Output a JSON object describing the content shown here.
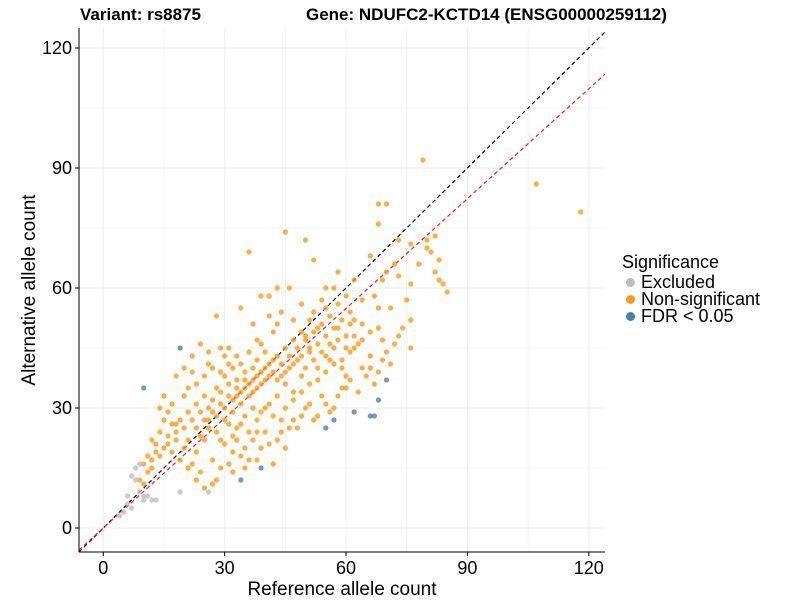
{
  "title": {
    "variant": "Variant: rs8875",
    "gene": "Gene: NDUFC2-KCTD14 (ENSG00000259112)"
  },
  "colors": {
    "Excluded": "#bdbdbd",
    "Non-significant": "#ff9913",
    "FDR < 0.05": "#4a7fb5",
    "identity_line": "#000000",
    "fit_line": "#ff1a1a",
    "grid": "#ececec"
  },
  "chart_data": {
    "type": "scatter",
    "xlabel": "Reference allele count",
    "ylabel": "Alternative allele count",
    "xlim": [
      -6,
      124
    ],
    "ylim": [
      -6,
      125
    ],
    "xticks": [
      0,
      30,
      60,
      90,
      120
    ],
    "yticks": [
      0,
      30,
      60,
      90,
      120
    ],
    "grid": true,
    "legend": {
      "title": "Significance",
      "position": "right",
      "entries": [
        "Excluded",
        "Non-significant",
        "FDR < 0.05"
      ]
    },
    "lines": [
      {
        "name": "identity",
        "style": "dashed",
        "slope": 1.0,
        "intercept": 0
      },
      {
        "name": "fit",
        "style": "dashed",
        "slope": 0.915,
        "intercept": 0
      }
    ],
    "series": [
      {
        "name": "Excluded",
        "points": [
          [
            4,
            3
          ],
          [
            5,
            4
          ],
          [
            6,
            6
          ],
          [
            6,
            8
          ],
          [
            7,
            5
          ],
          [
            7,
            13
          ],
          [
            8,
            12
          ],
          [
            8,
            15
          ],
          [
            9,
            9
          ],
          [
            9,
            16
          ],
          [
            10,
            7
          ],
          [
            10,
            8
          ],
          [
            11,
            8
          ],
          [
            12,
            7
          ],
          [
            13,
            7
          ],
          [
            19,
            9
          ],
          [
            26,
            9
          ]
        ]
      },
      {
        "name": "FDR < 0.05",
        "points": [
          [
            10,
            35
          ],
          [
            19,
            45
          ],
          [
            34,
            12
          ],
          [
            39,
            15
          ],
          [
            55,
            25
          ],
          [
            57,
            27
          ],
          [
            62,
            29
          ],
          [
            66,
            28
          ],
          [
            67,
            28
          ],
          [
            68,
            32
          ],
          [
            70,
            37
          ]
        ]
      },
      {
        "name": "Non-significant",
        "points": [
          [
            79,
            92
          ],
          [
            107,
            86
          ],
          [
            118,
            79
          ],
          [
            73,
            72
          ],
          [
            80,
            72
          ],
          [
            76,
            71
          ],
          [
            83,
            67
          ],
          [
            70,
            81
          ],
          [
            68,
            81
          ],
          [
            68,
            76
          ],
          [
            66,
            68
          ],
          [
            82,
            64
          ],
          [
            69,
            62
          ],
          [
            84,
            61
          ],
          [
            83,
            62
          ],
          [
            85,
            59
          ],
          [
            76,
            52
          ],
          [
            76,
            45
          ],
          [
            75,
            57
          ],
          [
            73,
            48
          ],
          [
            71,
            55
          ],
          [
            64,
            47
          ],
          [
            62,
            45
          ],
          [
            66,
            43
          ],
          [
            69,
            47
          ],
          [
            56,
            42
          ],
          [
            60,
            38
          ],
          [
            61,
            51
          ],
          [
            58,
            56
          ],
          [
            55,
            60
          ],
          [
            52,
            67
          ],
          [
            50,
            72
          ],
          [
            51,
            52
          ],
          [
            53,
            50
          ],
          [
            50,
            48
          ],
          [
            45,
            74
          ],
          [
            43,
            60
          ],
          [
            41,
            58
          ],
          [
            39,
            58
          ],
          [
            38,
            47
          ],
          [
            37,
            51
          ],
          [
            36,
            69
          ],
          [
            34,
            55
          ],
          [
            33,
            43
          ],
          [
            31,
            45
          ],
          [
            30,
            43
          ],
          [
            28,
            53
          ],
          [
            29,
            45
          ],
          [
            26,
            44
          ],
          [
            26,
            41
          ],
          [
            24,
            46
          ],
          [
            22,
            43
          ],
          [
            22,
            39
          ],
          [
            21,
            35
          ],
          [
            20,
            33
          ],
          [
            20,
            40
          ],
          [
            18,
            38
          ],
          [
            17,
            31
          ],
          [
            16,
            29
          ],
          [
            15,
            27
          ],
          [
            15,
            33
          ],
          [
            14,
            24
          ],
          [
            14,
            30
          ],
          [
            13,
            21
          ],
          [
            12,
            17
          ],
          [
            12,
            22
          ],
          [
            11,
            14
          ],
          [
            11,
            18
          ],
          [
            10,
            11
          ],
          [
            10,
            16
          ],
          [
            9,
            12
          ],
          [
            18,
            26
          ],
          [
            18,
            22
          ],
          [
            17,
            19
          ],
          [
            16,
            21
          ],
          [
            19,
            17
          ],
          [
            21,
            15
          ],
          [
            20,
            20
          ],
          [
            22,
            16
          ],
          [
            23,
            12
          ],
          [
            23,
            19
          ],
          [
            24,
            14
          ],
          [
            25,
            22
          ],
          [
            25,
            10
          ],
          [
            27,
            11
          ],
          [
            27,
            17
          ],
          [
            28,
            12
          ],
          [
            29,
            22
          ],
          [
            29,
            15
          ],
          [
            31,
            16
          ],
          [
            32,
            14
          ],
          [
            32,
            19
          ],
          [
            33,
            22
          ],
          [
            34,
            18
          ],
          [
            35,
            15
          ],
          [
            35,
            20
          ],
          [
            36,
            17
          ],
          [
            37,
            22
          ],
          [
            38,
            24
          ],
          [
            38,
            17
          ],
          [
            39,
            20
          ],
          [
            40,
            24
          ],
          [
            41,
            21
          ],
          [
            42,
            16
          ],
          [
            43,
            22
          ],
          [
            44,
            24
          ],
          [
            45,
            20
          ],
          [
            46,
            25
          ],
          [
            47,
            27
          ],
          [
            48,
            25
          ],
          [
            49,
            28
          ],
          [
            50,
            30
          ],
          [
            51,
            31
          ],
          [
            52,
            27
          ],
          [
            53,
            28
          ],
          [
            54,
            33
          ],
          [
            55,
            31
          ],
          [
            56,
            29
          ],
          [
            57,
            30
          ],
          [
            58,
            33
          ],
          [
            59,
            35
          ],
          [
            60,
            35
          ],
          [
            61,
            37
          ],
          [
            63,
            34
          ],
          [
            64,
            40
          ],
          [
            65,
            38
          ],
          [
            66,
            40
          ],
          [
            67,
            36
          ],
          [
            68,
            39
          ],
          [
            69,
            42
          ],
          [
            70,
            44
          ],
          [
            71,
            41
          ],
          [
            72,
            46
          ],
          [
            74,
            50
          ],
          [
            76,
            61
          ],
          [
            78,
            66
          ],
          [
            80,
            70
          ],
          [
            81,
            69
          ],
          [
            82,
            73
          ],
          [
            72,
            66
          ],
          [
            70,
            64
          ],
          [
            73,
            63
          ],
          [
            67,
            58
          ],
          [
            68,
            55
          ],
          [
            64,
            57
          ],
          [
            62,
            62
          ],
          [
            60,
            58
          ],
          [
            58,
            64
          ],
          [
            57,
            60
          ],
          [
            55,
            55
          ],
          [
            54,
            57
          ],
          [
            52,
            54
          ],
          [
            49,
            56
          ],
          [
            47,
            52
          ],
          [
            46,
            60
          ],
          [
            44,
            54
          ],
          [
            43,
            51
          ],
          [
            42,
            49
          ],
          [
            41,
            53
          ],
          [
            40,
            44
          ],
          [
            39,
            46
          ],
          [
            38,
            42
          ],
          [
            37,
            40
          ],
          [
            36,
            44
          ],
          [
            35,
            39
          ],
          [
            34,
            41
          ],
          [
            33,
            37
          ],
          [
            32,
            40
          ],
          [
            31,
            36
          ],
          [
            30,
            38
          ],
          [
            29,
            34
          ],
          [
            28,
            35
          ],
          [
            27,
            32
          ],
          [
            26,
            30
          ],
          [
            25,
            33
          ],
          [
            24,
            29
          ],
          [
            23,
            31
          ],
          [
            22,
            27
          ],
          [
            21,
            29
          ],
          [
            20,
            25
          ],
          [
            19,
            27
          ],
          [
            18,
            24
          ],
          [
            17,
            26
          ],
          [
            16,
            23
          ],
          [
            15,
            20
          ],
          [
            14,
            18
          ],
          [
            13,
            19
          ],
          [
            12,
            15
          ],
          [
            30,
            27
          ],
          [
            32,
            29
          ],
          [
            34,
            31
          ],
          [
            36,
            33
          ],
          [
            38,
            35
          ],
          [
            40,
            37
          ],
          [
            42,
            39
          ],
          [
            44,
            41
          ],
          [
            46,
            43
          ],
          [
            48,
            45
          ],
          [
            50,
            47
          ],
          [
            52,
            49
          ],
          [
            54,
            51
          ],
          [
            56,
            53
          ],
          [
            58,
            50
          ],
          [
            60,
            48
          ],
          [
            62,
            52
          ],
          [
            64,
            51
          ],
          [
            66,
            49
          ],
          [
            68,
            50
          ],
          [
            45,
            36
          ],
          [
            47,
            34
          ],
          [
            49,
            38
          ],
          [
            51,
            36
          ],
          [
            53,
            40
          ],
          [
            55,
            43
          ],
          [
            57,
            45
          ],
          [
            59,
            42
          ],
          [
            61,
            44
          ],
          [
            63,
            46
          ],
          [
            31,
            26
          ],
          [
            33,
            25
          ],
          [
            35,
            28
          ],
          [
            37,
            30
          ],
          [
            39,
            29
          ],
          [
            41,
            31
          ],
          [
            43,
            33
          ],
          [
            45,
            30
          ],
          [
            47,
            32
          ],
          [
            49,
            34
          ],
          [
            26,
            25
          ],
          [
            28,
            24
          ],
          [
            30,
            21
          ],
          [
            32,
            23
          ],
          [
            34,
            26
          ],
          [
            36,
            24
          ],
          [
            38,
            27
          ],
          [
            40,
            30
          ],
          [
            42,
            28
          ],
          [
            44,
            27
          ],
          [
            23,
            36
          ],
          [
            25,
            38
          ],
          [
            27,
            40
          ],
          [
            29,
            39
          ],
          [
            31,
            41
          ],
          [
            33,
            33
          ],
          [
            35,
            35
          ],
          [
            37,
            37
          ],
          [
            39,
            39
          ],
          [
            41,
            41
          ],
          [
            43,
            43
          ],
          [
            45,
            45
          ],
          [
            47,
            47
          ],
          [
            49,
            49
          ],
          [
            51,
            44
          ],
          [
            53,
            46
          ],
          [
            55,
            48
          ],
          [
            57,
            50
          ],
          [
            59,
            52
          ],
          [
            61,
            54
          ],
          [
            24,
            23
          ],
          [
            26,
            27
          ],
          [
            28,
            28
          ],
          [
            30,
            30
          ],
          [
            32,
            32
          ],
          [
            34,
            34
          ],
          [
            36,
            36
          ],
          [
            38,
            38
          ],
          [
            40,
            40
          ],
          [
            42,
            42
          ],
          [
            44,
            38
          ],
          [
            46,
            40
          ],
          [
            48,
            42
          ],
          [
            50,
            40
          ],
          [
            52,
            42
          ],
          [
            54,
            44
          ],
          [
            56,
            46
          ],
          [
            58,
            47
          ],
          [
            60,
            45
          ],
          [
            62,
            48
          ],
          [
            21,
            22
          ],
          [
            23,
            25
          ],
          [
            25,
            27
          ],
          [
            27,
            29
          ],
          [
            29,
            31
          ],
          [
            31,
            33
          ],
          [
            33,
            35
          ],
          [
            35,
            37
          ],
          [
            37,
            34
          ],
          [
            39,
            36
          ],
          [
            41,
            38
          ],
          [
            43,
            37
          ],
          [
            45,
            39
          ],
          [
            47,
            41
          ],
          [
            49,
            43
          ],
          [
            51,
            45
          ],
          [
            53,
            37
          ],
          [
            55,
            39
          ],
          [
            57,
            41
          ],
          [
            59,
            40
          ]
        ]
      }
    ]
  }
}
